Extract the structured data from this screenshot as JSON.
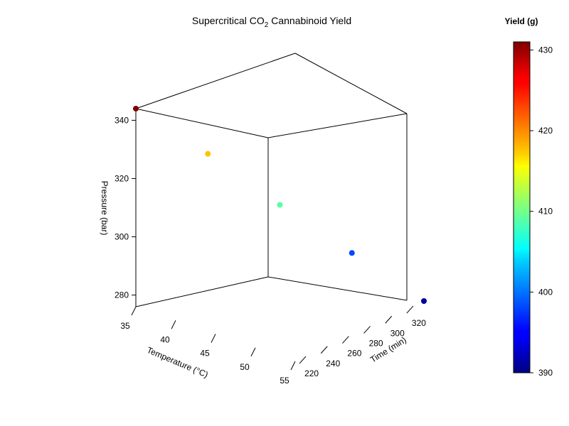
{
  "chart_data": {
    "type": "scatter",
    "title_main": "Supercritical CO",
    "title_sub": "2",
    "title_rest": " Cannabinoid Yield",
    "x_axis": {
      "label": "Temperature (°C)",
      "range": [
        35,
        55
      ],
      "ticks": [
        "35",
        "40",
        "45",
        "50",
        "55"
      ]
    },
    "y_axis": {
      "label": "Time (min)",
      "range": [
        210,
        330
      ],
      "ticks": [
        "220",
        "240",
        "260",
        "280",
        "300",
        "320"
      ]
    },
    "z_axis": {
      "label": "Pressure (bar)",
      "range": [
        276,
        344
      ],
      "ticks": [
        "280",
        "300",
        "320",
        "340"
      ]
    },
    "colorbar": {
      "title": "Yield (g)",
      "range": [
        390,
        431
      ],
      "ticks": [
        "390",
        "400",
        "410",
        "420",
        "430"
      ],
      "colormap": "jet"
    },
    "points": [
      {
        "temperature": 35,
        "time": 210,
        "pressure": 344,
        "yield": 431
      },
      {
        "temperature": 40,
        "time": 240,
        "pressure": 328,
        "yield": 418
      },
      {
        "temperature": 45,
        "time": 270,
        "pressure": 310,
        "yield": 409
      },
      {
        "temperature": 50,
        "time": 300,
        "pressure": 293,
        "yield": 398
      },
      {
        "temperature": 55,
        "time": 330,
        "pressure": 276,
        "yield": 391
      }
    ]
  }
}
